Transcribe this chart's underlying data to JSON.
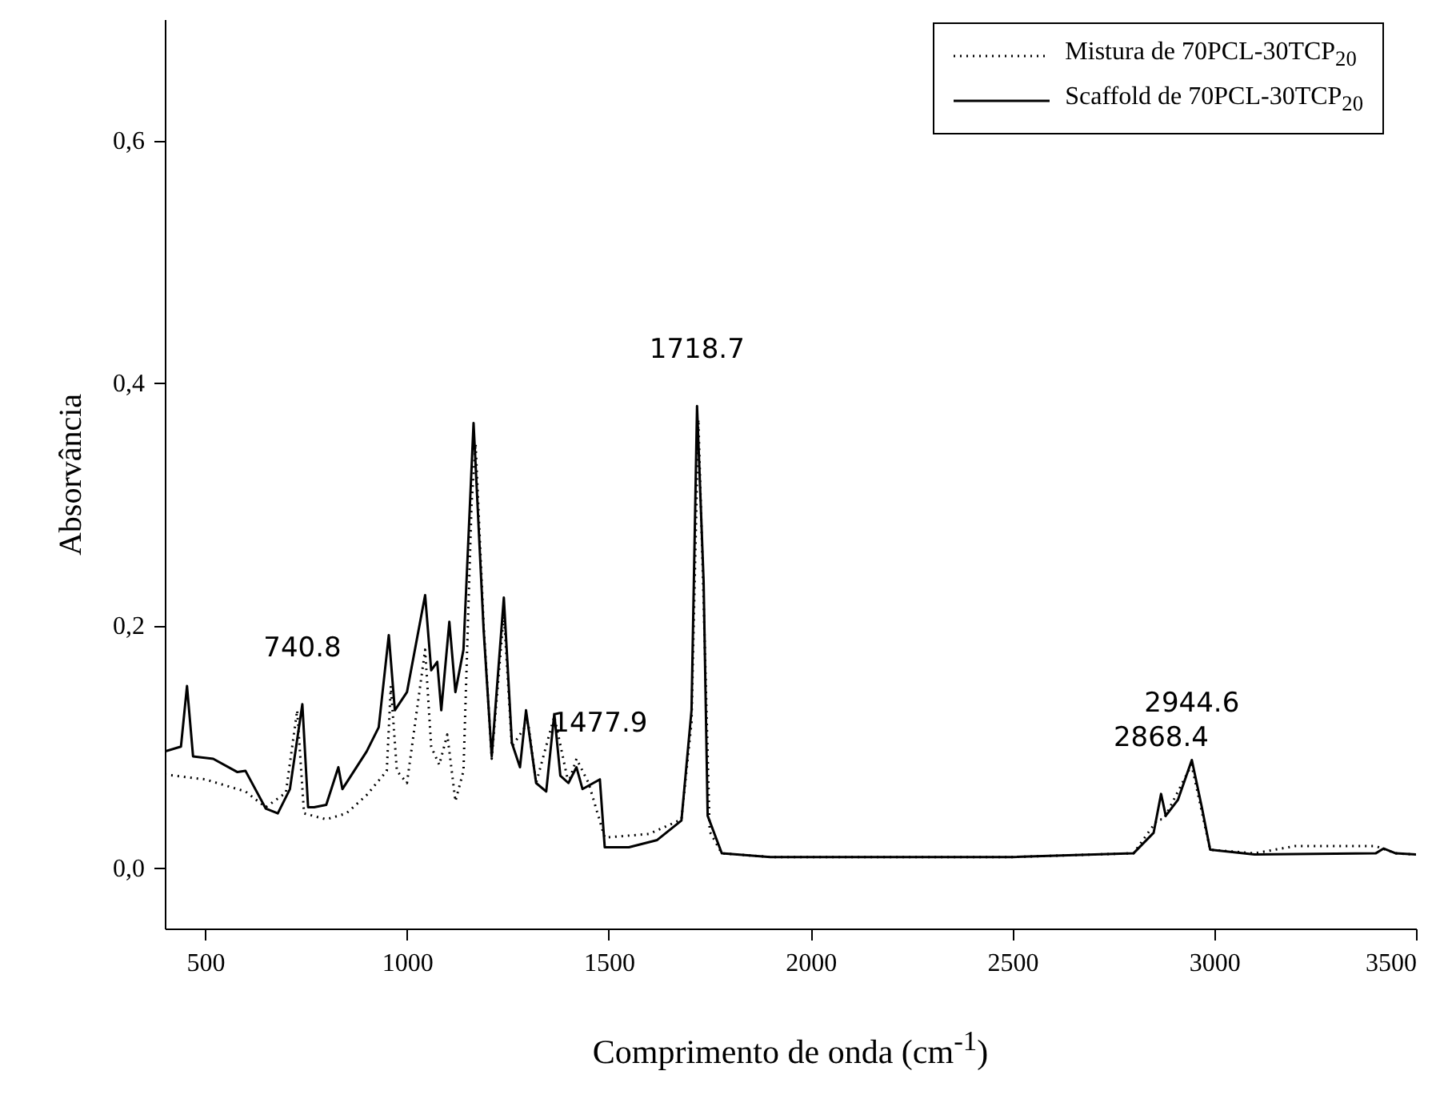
{
  "chart_data": {
    "type": "line",
    "xlabel": "Comprimento de onda (cm$^{-1}$)",
    "ylabel": "Absorvância",
    "xlim": [
      400,
      3500
    ],
    "xticks": [
      500,
      1000,
      1500,
      2000,
      2500,
      3000,
      3500
    ],
    "ylim": [
      -0.05,
      0.7
    ],
    "yticks": [
      {
        "value": 0,
        "label": "0,0"
      },
      {
        "value": 0.2,
        "label": "0,2"
      },
      {
        "value": 0.4,
        "label": "0,4"
      },
      {
        "value": 0.6,
        "label": "0,6"
      }
    ],
    "grid": false,
    "legend": "top right",
    "series": [
      {
        "name": "Mistura de 70PCL-30TCP$_{20}$",
        "color": "#000000",
        "line_style": "dotted",
        "x": [
          400,
          500,
          600,
          650,
          700,
          728,
          745,
          800,
          850,
          900,
          950,
          960,
          975,
          1000,
          1045,
          1060,
          1080,
          1100,
          1120,
          1140,
          1160,
          1170,
          1190,
          1210,
          1240,
          1260,
          1300,
          1320,
          1365,
          1400,
          1420,
          1450,
          1490,
          1600,
          1680,
          1705,
          1722,
          1735,
          1750,
          1780,
          1900,
          2500,
          2800,
          2860,
          2875,
          2944,
          2990,
          3100,
          3200,
          3400,
          3450,
          3500
        ],
        "values": [
          0.077,
          0.073,
          0.063,
          0.05,
          0.062,
          0.13,
          0.045,
          0.04,
          0.045,
          0.06,
          0.08,
          0.15,
          0.08,
          0.07,
          0.18,
          0.1,
          0.085,
          0.11,
          0.055,
          0.08,
          0.3,
          0.35,
          0.2,
          0.09,
          0.21,
          0.1,
          0.12,
          0.07,
          0.125,
          0.07,
          0.09,
          0.07,
          0.025,
          0.028,
          0.04,
          0.12,
          0.37,
          0.22,
          0.03,
          0.012,
          0.009,
          0.009,
          0.012,
          0.04,
          0.04,
          0.085,
          0.015,
          0.012,
          0.018,
          0.018,
          0.012,
          0.011
        ]
      },
      {
        "name": "Scaffold de 70PCL-30TCP$_{20}$",
        "color": "#000000",
        "line_style": "solid",
        "x": [
          400,
          440,
          455,
          470,
          520,
          580,
          600,
          650,
          680,
          710,
          740.8,
          755,
          770,
          800,
          830,
          840,
          900,
          930,
          955,
          970,
          1000,
          1045,
          1060,
          1075,
          1085,
          1105,
          1120,
          1140,
          1165,
          1190,
          1210,
          1240,
          1260,
          1280,
          1295,
          1320,
          1345,
          1365,
          1380,
          1400,
          1420,
          1435,
          1477.9,
          1490,
          1550,
          1620,
          1680,
          1705,
          1718.7,
          1735,
          1745,
          1780,
          1900,
          2500,
          2800,
          2850,
          2868.4,
          2880,
          2910,
          2944.6,
          2970,
          2990,
          3100,
          3400,
          3420,
          3450,
          3500
        ],
        "values": [
          0.096,
          0.1,
          0.15,
          0.092,
          0.09,
          0.079,
          0.08,
          0.049,
          0.045,
          0.065,
          0.135,
          0.05,
          0.05,
          0.052,
          0.083,
          0.065,
          0.096,
          0.116,
          0.192,
          0.13,
          0.145,
          0.225,
          0.163,
          0.17,
          0.13,
          0.203,
          0.145,
          0.18,
          0.367,
          0.196,
          0.092,
          0.223,
          0.103,
          0.083,
          0.13,
          0.07,
          0.063,
          0.127,
          0.076,
          0.07,
          0.083,
          0.065,
          0.073,
          0.017,
          0.017,
          0.023,
          0.039,
          0.13,
          0.381,
          0.236,
          0.043,
          0.012,
          0.009,
          0.009,
          0.012,
          0.029,
          0.061,
          0.043,
          0.056,
          0.089,
          0.049,
          0.015,
          0.011,
          0.012,
          0.016,
          0.012,
          0.011
        ]
      }
    ],
    "annotations": [
      {
        "text": "740.8",
        "x": 740.8,
        "y": 0.135
      },
      {
        "text": "1477.9",
        "x": 1477.9,
        "y": 0.073
      },
      {
        "text": "1718.7",
        "x": 1718.7,
        "y": 0.381
      },
      {
        "text": "2868.4",
        "x": 2868.4,
        "y": 0.061
      },
      {
        "text": "2944.6",
        "x": 2944.6,
        "y": 0.089
      }
    ]
  }
}
